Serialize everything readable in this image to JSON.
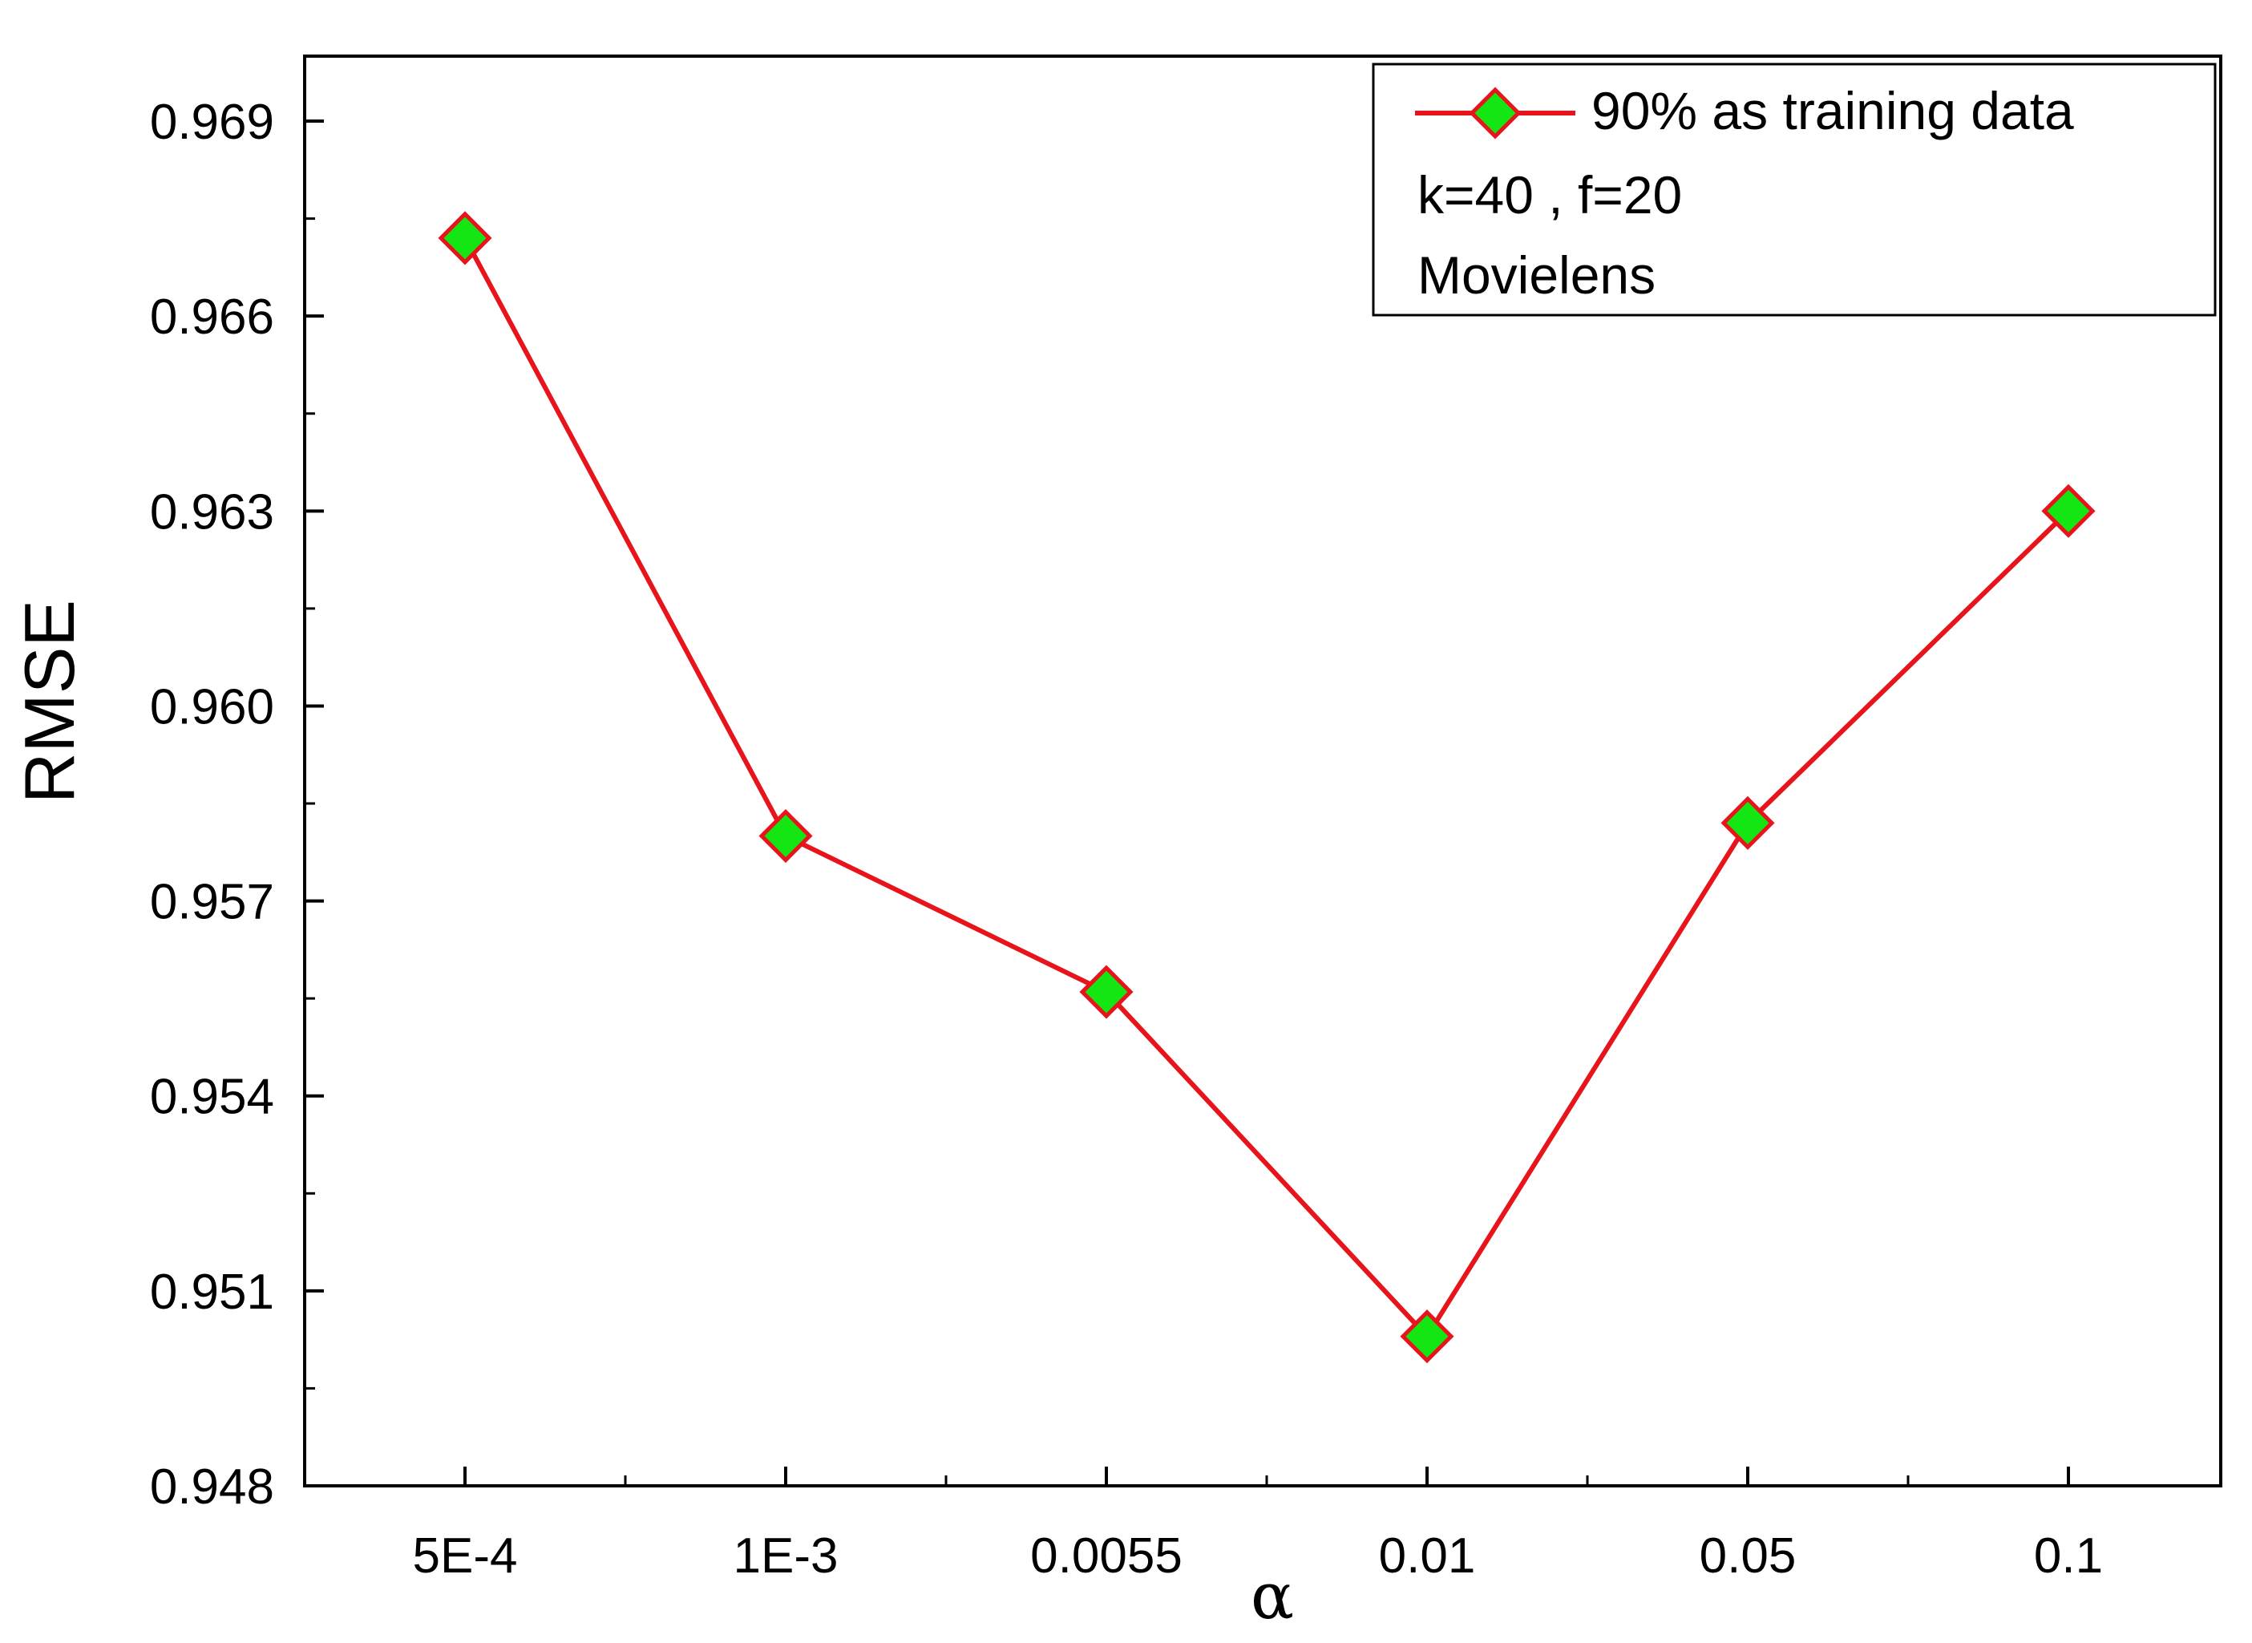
{
  "chart_data": {
    "type": "line",
    "xlabel": "α",
    "ylabel": "RMSE",
    "categories": [
      "5E-4",
      "1E-3",
      "0.0055",
      "0.01",
      "0.05",
      "0.1"
    ],
    "y_ticks": [
      "0.948",
      "0.951",
      "0.954",
      "0.957",
      "0.960",
      "0.963",
      "0.966",
      "0.969"
    ],
    "ylim": [
      0.948,
      0.97
    ],
    "grid": false,
    "legend_position": "top-right",
    "series": [
      {
        "name": "90% as training data",
        "color": "#e8141c",
        "marker": "diamond",
        "marker_fill": "#14e614",
        "values": [
          0.9672,
          0.958,
          0.9556,
          0.9503,
          0.9582,
          0.963
        ]
      }
    ],
    "annotations": [
      "k=40 , f=20",
      "Movielens"
    ]
  }
}
